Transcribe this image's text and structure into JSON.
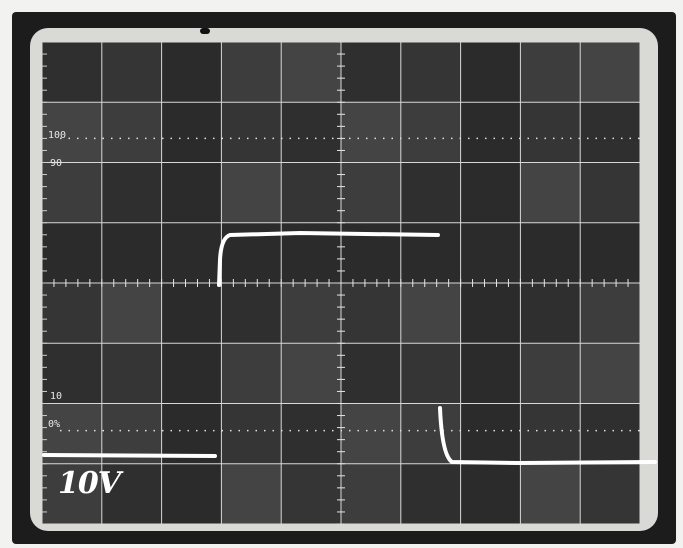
{
  "scope": {
    "volts_label": "10V",
    "scale_marks": [
      "100",
      "90",
      "10",
      "0%"
    ],
    "trace_color": "#ffffff"
  }
}
